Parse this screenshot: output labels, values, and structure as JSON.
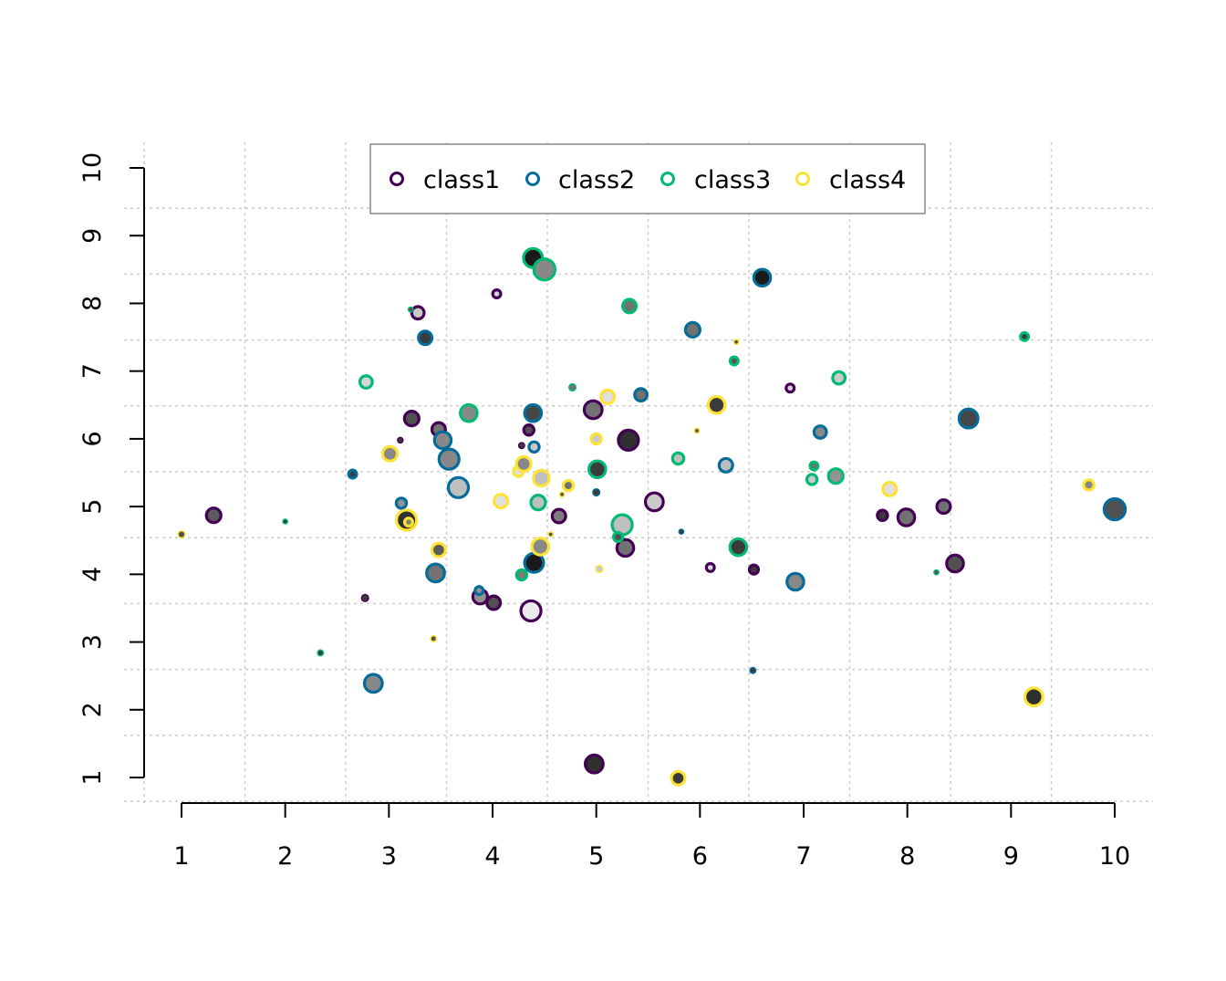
{
  "chart_data": {
    "type": "scatter",
    "title": "",
    "xlabel": "",
    "ylabel": "",
    "xlim": [
      1,
      10
    ],
    "ylim": [
      1,
      10
    ],
    "x_ticks": [
      "1",
      "2",
      "3",
      "4",
      "5",
      "6",
      "7",
      "8",
      "9",
      "10"
    ],
    "y_ticks": [
      "1",
      "2",
      "3",
      "4",
      "5",
      "6",
      "7",
      "8",
      "9",
      "10"
    ],
    "grid": true,
    "legend_position": "top",
    "series": [
      {
        "name": "class1",
        "color": "#440154",
        "points": [
          {
            "x": 1.31,
            "y": 4.87,
            "size": 0.5,
            "fill": 0.35
          },
          {
            "x": 3.22,
            "y": 6.3,
            "size": 0.5,
            "fill": 0.3
          },
          {
            "x": 3.28,
            "y": 7.86,
            "size": 0.4,
            "fill": 0.85
          },
          {
            "x": 3.48,
            "y": 6.14,
            "size": 0.45,
            "fill": 0.45
          },
          {
            "x": 2.77,
            "y": 3.65,
            "size": 0.15,
            "fill": 0.2
          },
          {
            "x": 3.11,
            "y": 5.98,
            "size": 0.08,
            "fill": 0.2
          },
          {
            "x": 4.04,
            "y": 8.14,
            "size": 0.2,
            "fill": 0.9
          },
          {
            "x": 4.35,
            "y": 6.13,
            "size": 0.3,
            "fill": 0.3
          },
          {
            "x": 4.28,
            "y": 5.9,
            "size": 0.1,
            "fill": 0.2
          },
          {
            "x": 4.97,
            "y": 6.43,
            "size": 0.65,
            "fill": 0.45
          },
          {
            "x": 5.31,
            "y": 5.98,
            "size": 0.75,
            "fill": 0.15
          },
          {
            "x": 4.64,
            "y": 4.86,
            "size": 0.45,
            "fill": 0.5
          },
          {
            "x": 3.88,
            "y": 3.67,
            "size": 0.5,
            "fill": 0.6
          },
          {
            "x": 4.01,
            "y": 3.58,
            "size": 0.45,
            "fill": 0.3
          },
          {
            "x": 4.37,
            "y": 3.46,
            "size": 0.75,
            "fill": 1.0
          },
          {
            "x": 4.98,
            "y": 1.2,
            "size": 0.65,
            "fill": 0.15
          },
          {
            "x": 5.28,
            "y": 4.39,
            "size": 0.6,
            "fill": 0.45
          },
          {
            "x": 5.56,
            "y": 5.07,
            "size": 0.65,
            "fill": 0.85
          },
          {
            "x": 6.1,
            "y": 4.1,
            "size": 0.2,
            "fill": 0.9
          },
          {
            "x": 6.52,
            "y": 4.07,
            "size": 0.25,
            "fill": 0.2
          },
          {
            "x": 6.87,
            "y": 6.75,
            "size": 0.2,
            "fill": 0.9
          },
          {
            "x": 7.76,
            "y": 4.87,
            "size": 0.3,
            "fill": 0.2
          },
          {
            "x": 7.99,
            "y": 4.84,
            "size": 0.6,
            "fill": 0.45
          },
          {
            "x": 8.35,
            "y": 5.0,
            "size": 0.45,
            "fill": 0.45
          },
          {
            "x": 8.46,
            "y": 4.16,
            "size": 0.6,
            "fill": 0.3
          }
        ]
      },
      {
        "name": "class2",
        "color": "#046C9A",
        "points": [
          {
            "x": 2.65,
            "y": 5.48,
            "size": 0.2,
            "fill": 0.2
          },
          {
            "x": 3.35,
            "y": 7.49,
            "size": 0.45,
            "fill": 0.2
          },
          {
            "x": 3.12,
            "y": 5.05,
            "size": 0.3,
            "fill": 0.6
          },
          {
            "x": 3.52,
            "y": 5.98,
            "size": 0.6,
            "fill": 0.55
          },
          {
            "x": 3.58,
            "y": 5.7,
            "size": 0.75,
            "fill": 0.55
          },
          {
            "x": 3.67,
            "y": 5.28,
            "size": 0.75,
            "fill": 0.8
          },
          {
            "x": 3.45,
            "y": 4.02,
            "size": 0.65,
            "fill": 0.45
          },
          {
            "x": 3.87,
            "y": 3.76,
            "size": 0.2,
            "fill": 0.6
          },
          {
            "x": 2.85,
            "y": 2.39,
            "size": 0.65,
            "fill": 0.55
          },
          {
            "x": 4.39,
            "y": 6.38,
            "size": 0.6,
            "fill": 0.25
          },
          {
            "x": 4.4,
            "y": 5.88,
            "size": 0.3,
            "fill": 0.85
          },
          {
            "x": 4.4,
            "y": 4.17,
            "size": 0.7,
            "fill": 0.05
          },
          {
            "x": 5.0,
            "y": 5.21,
            "size": 0.15,
            "fill": 0.2
          },
          {
            "x": 5.43,
            "y": 6.65,
            "size": 0.4,
            "fill": 0.45
          },
          {
            "x": 5.82,
            "y": 4.63,
            "size": 0.05,
            "fill": 0.2
          },
          {
            "x": 5.93,
            "y": 7.61,
            "size": 0.5,
            "fill": 0.45
          },
          {
            "x": 6.25,
            "y": 5.61,
            "size": 0.45,
            "fill": 0.8
          },
          {
            "x": 6.51,
            "y": 2.58,
            "size": 0.1,
            "fill": 0.2
          },
          {
            "x": 6.6,
            "y": 8.38,
            "size": 0.6,
            "fill": 0.05
          },
          {
            "x": 6.92,
            "y": 3.89,
            "size": 0.6,
            "fill": 0.55
          },
          {
            "x": 7.16,
            "y": 6.1,
            "size": 0.4,
            "fill": 0.55
          },
          {
            "x": 8.59,
            "y": 6.3,
            "size": 0.7,
            "fill": 0.25
          },
          {
            "x": 10.0,
            "y": 4.96,
            "size": 0.8,
            "fill": 0.3
          }
        ]
      },
      {
        "name": "class3",
        "color": "#00BA72",
        "points": [
          {
            "x": 2.0,
            "y": 4.78,
            "size": 0.05,
            "fill": 0.2
          },
          {
            "x": 2.34,
            "y": 2.84,
            "size": 0.1,
            "fill": 0.2
          },
          {
            "x": 2.78,
            "y": 6.84,
            "size": 0.4,
            "fill": 0.9
          },
          {
            "x": 3.77,
            "y": 6.38,
            "size": 0.6,
            "fill": 0.55
          },
          {
            "x": 4.28,
            "y": 3.99,
            "size": 0.3,
            "fill": 0.5
          },
          {
            "x": 4.39,
            "y": 8.67,
            "size": 0.7,
            "fill": 0.05
          },
          {
            "x": 4.5,
            "y": 8.5,
            "size": 0.8,
            "fill": 0.55
          },
          {
            "x": 4.44,
            "y": 5.06,
            "size": 0.5,
            "fill": 0.8
          },
          {
            "x": 4.77,
            "y": 6.76,
            "size": 0.15,
            "fill": 0.45
          },
          {
            "x": 5.01,
            "y": 5.55,
            "size": 0.6,
            "fill": 0.2
          },
          {
            "x": 5.25,
            "y": 4.73,
            "size": 0.75,
            "fill": 0.8
          },
          {
            "x": 5.21,
            "y": 4.55,
            "size": 0.25,
            "fill": 0.3
          },
          {
            "x": 5.32,
            "y": 7.96,
            "size": 0.45,
            "fill": 0.45
          },
          {
            "x": 5.79,
            "y": 5.71,
            "size": 0.35,
            "fill": 0.8
          },
          {
            "x": 6.33,
            "y": 7.15,
            "size": 0.2,
            "fill": 0.3
          },
          {
            "x": 6.37,
            "y": 4.4,
            "size": 0.6,
            "fill": 0.2
          },
          {
            "x": 7.08,
            "y": 5.4,
            "size": 0.3,
            "fill": 0.85
          },
          {
            "x": 7.1,
            "y": 5.6,
            "size": 0.2,
            "fill": 0.45
          },
          {
            "x": 7.31,
            "y": 5.45,
            "size": 0.5,
            "fill": 0.6
          },
          {
            "x": 7.34,
            "y": 6.9,
            "size": 0.4,
            "fill": 0.85
          },
          {
            "x": 8.28,
            "y": 4.03,
            "size": 0.05,
            "fill": 0.3
          },
          {
            "x": 9.13,
            "y": 7.51,
            "size": 0.2,
            "fill": 0.2
          },
          {
            "x": 3.21,
            "y": 7.91,
            "size": 0.05,
            "fill": 0.3
          }
        ]
      },
      {
        "name": "class4",
        "color": "#FDE333",
        "points": [
          {
            "x": 1.0,
            "y": 4.59,
            "size": 0.15,
            "fill": 0.3
          },
          {
            "x": 3.01,
            "y": 5.78,
            "size": 0.5,
            "fill": 0.55
          },
          {
            "x": 3.17,
            "y": 4.8,
            "size": 0.75,
            "fill": 0.15
          },
          {
            "x": 3.19,
            "y": 4.77,
            "size": 0.2,
            "fill": 0.5
          },
          {
            "x": 3.48,
            "y": 4.36,
            "size": 0.45,
            "fill": 0.35
          },
          {
            "x": 3.43,
            "y": 3.05,
            "size": 0.1,
            "fill": 0.3
          },
          {
            "x": 4.08,
            "y": 5.08,
            "size": 0.45,
            "fill": 0.95
          },
          {
            "x": 4.25,
            "y": 5.52,
            "size": 0.3,
            "fill": 0.95
          },
          {
            "x": 4.3,
            "y": 5.63,
            "size": 0.5,
            "fill": 0.55
          },
          {
            "x": 4.47,
            "y": 5.42,
            "size": 0.55,
            "fill": 0.8
          },
          {
            "x": 4.46,
            "y": 4.41,
            "size": 0.6,
            "fill": 0.55
          },
          {
            "x": 4.73,
            "y": 5.31,
            "size": 0.3,
            "fill": 0.45
          },
          {
            "x": 4.56,
            "y": 4.59,
            "size": 0.05,
            "fill": 0.3
          },
          {
            "x": 4.67,
            "y": 5.18,
            "size": 0.05,
            "fill": 0.3
          },
          {
            "x": 5.0,
            "y": 6.0,
            "size": 0.3,
            "fill": 0.85
          },
          {
            "x": 5.03,
            "y": 4.08,
            "size": 0.15,
            "fill": 0.85
          },
          {
            "x": 5.11,
            "y": 6.62,
            "size": 0.45,
            "fill": 0.95
          },
          {
            "x": 5.79,
            "y": 0.99,
            "size": 0.45,
            "fill": 0.2
          },
          {
            "x": 5.97,
            "y": 6.12,
            "size": 0.05,
            "fill": 0.3
          },
          {
            "x": 6.16,
            "y": 6.5,
            "size": 0.6,
            "fill": 0.2
          },
          {
            "x": 6.35,
            "y": 7.43,
            "size": 0.05,
            "fill": 0.3
          },
          {
            "x": 7.83,
            "y": 5.26,
            "size": 0.45,
            "fill": 0.95
          },
          {
            "x": 9.22,
            "y": 2.19,
            "size": 0.65,
            "fill": 0.15
          },
          {
            "x": 9.75,
            "y": 5.32,
            "size": 0.3,
            "fill": 0.55
          }
        ]
      }
    ]
  }
}
